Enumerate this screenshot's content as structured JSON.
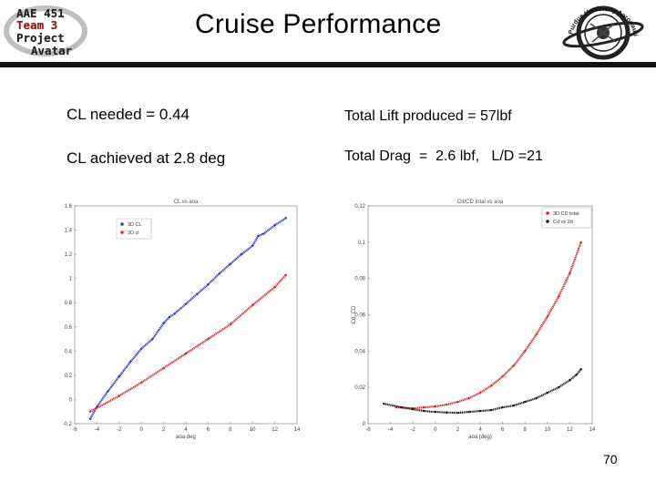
{
  "slide": {
    "title": "Cruise Performance",
    "page_number": "70"
  },
  "logo_left": {
    "lines": [
      "AAE 451",
      "Team 3",
      "Project",
      "Avatar"
    ]
  },
  "logo_right": {
    "text": "Purdue University Aeronautics & Astronautics"
  },
  "statements": {
    "cl_needed": "CL needed = 0.44",
    "cl_achieved": "CL achieved at 2.8 deg",
    "total_lift": "Total Lift produced = 57lbf",
    "total_drag": "Total Drag  =  2.6 lbf,   L/D =21"
  },
  "colors": {
    "series_blue": "#2a33d6",
    "series_red": "#e02424",
    "series_black": "#1a1a1a",
    "rule": "#111111"
  },
  "chart_data": [
    {
      "type": "scatter",
      "title": "CL vs aoa",
      "xlabel": "aoa deg",
      "ylabel": "",
      "xlim": [
        -6,
        14
      ],
      "ylim": [
        -0.2,
        1.6
      ],
      "xticks": [
        -6,
        -4,
        -2,
        0,
        2,
        4,
        6,
        8,
        10,
        12,
        14
      ],
      "yticks": [
        -0.2,
        0,
        0.2,
        0.4,
        0.6,
        0.8,
        1,
        1.2,
        1.4,
        1.6
      ],
      "grid": false,
      "legend_position": "top-left",
      "series": [
        {
          "name": "3D CL",
          "color": "#2a33d6",
          "x": [
            -4.6,
            -4,
            -3,
            -2,
            -1,
            0,
            1,
            2,
            2.5,
            3,
            4,
            5,
            6,
            7,
            8,
            9,
            10,
            10.5,
            11,
            12,
            13
          ],
          "y": [
            -0.16,
            -0.06,
            0.07,
            0.19,
            0.31,
            0.42,
            0.5,
            0.63,
            0.68,
            0.71,
            0.79,
            0.87,
            0.95,
            1.04,
            1.12,
            1.2,
            1.27,
            1.35,
            1.37,
            1.44,
            1.5
          ]
        },
        {
          "name": "2D cl",
          "color": "#e02424",
          "x": [
            -4.6,
            -2,
            0,
            2,
            4,
            6,
            8,
            10,
            12,
            13
          ],
          "y": [
            -0.1,
            0.03,
            0.14,
            0.26,
            0.38,
            0.5,
            0.62,
            0.78,
            0.93,
            1.03
          ]
        }
      ]
    },
    {
      "type": "scatter",
      "title": "Cd/CD total vs aoa",
      "xlabel": "aoa (deg)",
      "ylabel": "Cd, CD",
      "xlim": [
        -6,
        14
      ],
      "ylim": [
        0,
        0.12
      ],
      "xticks": [
        -6,
        -4,
        -2,
        0,
        2,
        4,
        6,
        8,
        10,
        12,
        14
      ],
      "yticks": [
        0,
        0.02,
        0.04,
        0.06,
        0.08,
        0.1,
        0.12
      ],
      "grid": false,
      "legend_position": "top-right",
      "series": [
        {
          "name": "3D CD total",
          "color": "#e02424",
          "x": [
            -3.5,
            -2,
            -1,
            0,
            1,
            2,
            3,
            4,
            5,
            6,
            7,
            8,
            9,
            10,
            11,
            12,
            13
          ],
          "y": [
            0.009,
            0.0085,
            0.009,
            0.0095,
            0.0105,
            0.012,
            0.014,
            0.017,
            0.021,
            0.026,
            0.032,
            0.04,
            0.049,
            0.059,
            0.07,
            0.083,
            0.1
          ]
        },
        {
          "name": "Cd vs 2d",
          "color": "#1a1a1a",
          "x": [
            -4.6,
            -3,
            -2,
            -1,
            0,
            1,
            2,
            3,
            4,
            5,
            6,
            7,
            8,
            9,
            10,
            11,
            12,
            12.6,
            13
          ],
          "y": [
            0.011,
            0.009,
            0.008,
            0.007,
            0.0065,
            0.0062,
            0.006,
            0.0065,
            0.007,
            0.0075,
            0.009,
            0.01,
            0.012,
            0.014,
            0.017,
            0.02,
            0.024,
            0.027,
            0.03
          ]
        }
      ]
    }
  ]
}
